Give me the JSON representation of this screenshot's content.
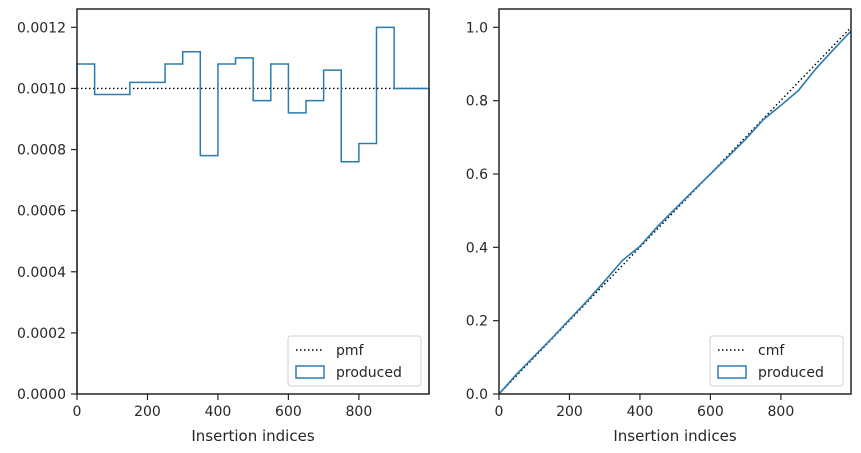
{
  "chart_data": [
    {
      "type": "step",
      "xlabel": "Insertion indices",
      "ylabel": "",
      "xlim": [
        0,
        999
      ],
      "ylim": [
        0,
        0.00126
      ],
      "xticks": [
        "0",
        "200",
        "400",
        "600",
        "800"
      ],
      "yticks": [
        "0.0000",
        "0.0002",
        "0.0004",
        "0.0006",
        "0.0008",
        "0.0010",
        "0.0012"
      ],
      "legend_position": "lower-right",
      "series": [
        {
          "name": "pmf",
          "style": "dotted",
          "color": "#000000",
          "x": [
            0,
            999
          ],
          "values": [
            0.001,
            0.001
          ]
        },
        {
          "name": "produced",
          "style": "solid",
          "color": "#2b7bb0",
          "bin_edges": [
            0,
            50,
            100,
            150,
            200,
            250,
            300,
            350,
            400,
            450,
            500,
            550,
            600,
            650,
            700,
            750,
            800,
            850,
            900,
            950,
            999
          ],
          "values": [
            0.00108,
            0.00098,
            0.00098,
            0.00102,
            0.00102,
            0.00108,
            0.00112,
            0.00078,
            0.00108,
            0.0011,
            0.00096,
            0.00108,
            0.00092,
            0.00096,
            0.00106,
            0.00076,
            0.00082,
            0.0012,
            0.001,
            0.001
          ]
        }
      ]
    },
    {
      "type": "line",
      "xlabel": "Insertion indices",
      "ylabel": "",
      "xlim": [
        0,
        999
      ],
      "ylim": [
        0,
        1.05
      ],
      "xticks": [
        "0",
        "200",
        "400",
        "600",
        "800"
      ],
      "yticks": [
        "0.0",
        "0.2",
        "0.4",
        "0.6",
        "0.8",
        "1.0"
      ],
      "legend_position": "lower-right",
      "series": [
        {
          "name": "cmf",
          "style": "dotted",
          "color": "#000000",
          "x": [
            0,
            999
          ],
          "values": [
            0,
            1.0
          ]
        },
        {
          "name": "produced",
          "style": "solid",
          "color": "#2b7bb0",
          "x": [
            0,
            50,
            100,
            150,
            200,
            250,
            300,
            350,
            400,
            450,
            500,
            550,
            600,
            650,
            700,
            750,
            800,
            850,
            900,
            950,
            999
          ],
          "values": [
            0,
            0.054,
            0.103,
            0.152,
            0.203,
            0.254,
            0.308,
            0.364,
            0.403,
            0.457,
            0.505,
            0.553,
            0.6,
            0.647,
            0.695,
            0.748,
            0.787,
            0.828,
            0.888,
            0.94,
            0.99
          ]
        }
      ]
    }
  ]
}
